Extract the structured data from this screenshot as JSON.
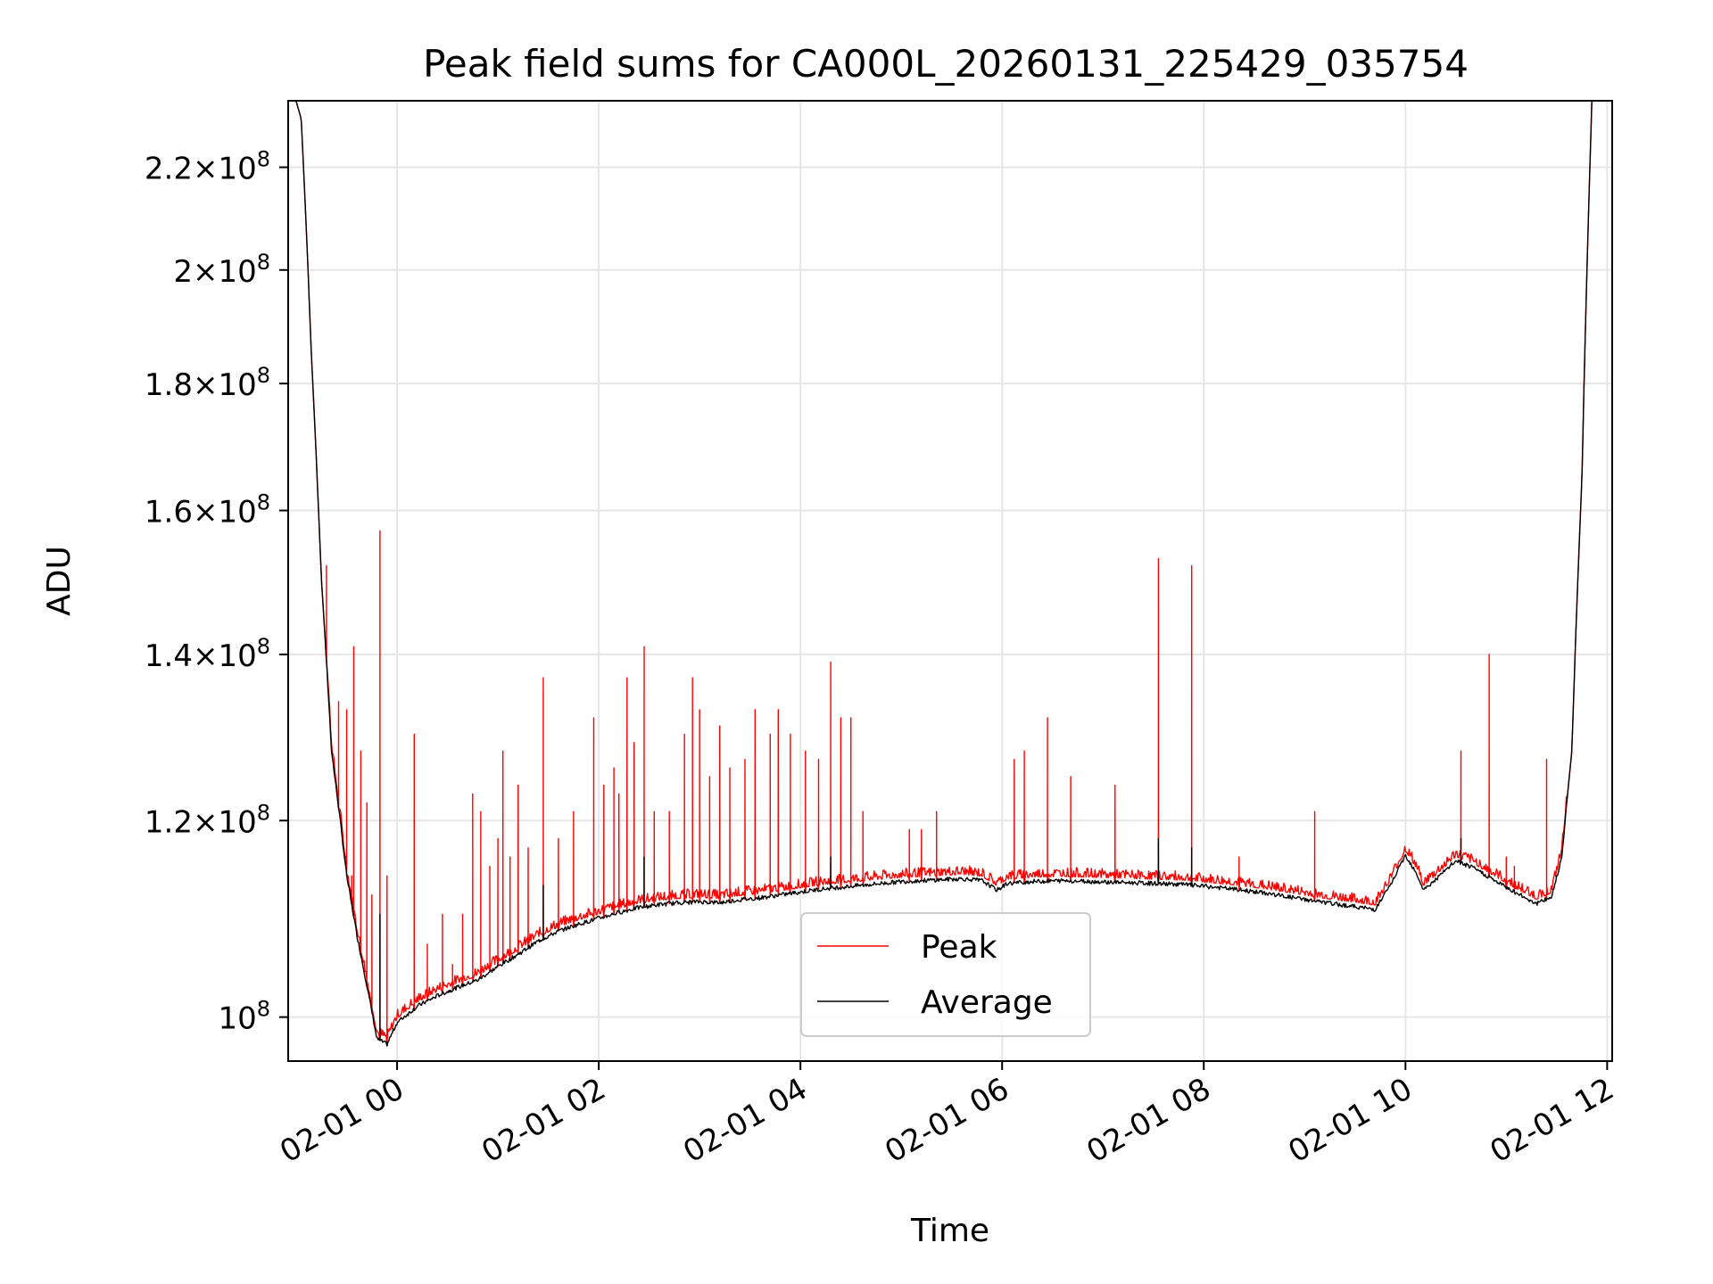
{
  "chart_data": {
    "type": "line",
    "title": "Peak field sums for CA000L_20260131_225429_035754",
    "xlabel": "Time",
    "ylabel": "ADU",
    "yscale": "log",
    "xlim_hours": [
      -1.08,
      12.05
    ],
    "ylim": [
      96000000,
      234000000
    ],
    "grid": true,
    "legend_position": "lower center",
    "x_ticks": [
      {
        "value": 0,
        "label": "02-01 00"
      },
      {
        "value": 2,
        "label": "02-01 02"
      },
      {
        "value": 4,
        "label": "02-01 04"
      },
      {
        "value": 6,
        "label": "02-01 06"
      },
      {
        "value": 8,
        "label": "02-01 08"
      },
      {
        "value": 10,
        "label": "02-01 10"
      },
      {
        "value": 12,
        "label": "02-01 12"
      }
    ],
    "y_ticks": [
      {
        "value": 100000000,
        "mant": "",
        "exp": "8"
      },
      {
        "value": 120000000,
        "mant": "1.2",
        "exp": "8"
      },
      {
        "value": 140000000,
        "mant": "1.4",
        "exp": "8"
      },
      {
        "value": 160000000,
        "mant": "1.6",
        "exp": "8"
      },
      {
        "value": 180000000,
        "mant": "1.8",
        "exp": "8"
      },
      {
        "value": 200000000,
        "mant": "2",
        "exp": "8"
      },
      {
        "value": 220000000,
        "mant": "2.2",
        "exp": "8"
      }
    ],
    "series": [
      {
        "name": "Peak",
        "color": "#ff0000"
      },
      {
        "name": "Average",
        "color": "#000000"
      }
    ],
    "average_baseline": [
      [
        -1.08,
        240000000
      ],
      [
        -0.95,
        230000000
      ],
      [
        -0.85,
        185000000
      ],
      [
        -0.75,
        150000000
      ],
      [
        -0.65,
        128000000
      ],
      [
        -0.5,
        114000000
      ],
      [
        -0.4,
        108000000
      ],
      [
        -0.3,
        103000000
      ],
      [
        -0.2,
        98000000
      ],
      [
        -0.1,
        97500000
      ],
      [
        0.0,
        99500000
      ],
      [
        0.2,
        101000000
      ],
      [
        0.4,
        102000000
      ],
      [
        0.6,
        102800000
      ],
      [
        0.8,
        103500000
      ],
      [
        1.0,
        104800000
      ],
      [
        1.2,
        106000000
      ],
      [
        1.4,
        107300000
      ],
      [
        1.6,
        108300000
      ],
      [
        1.8,
        109000000
      ],
      [
        2.0,
        109600000
      ],
      [
        2.2,
        110200000
      ],
      [
        2.4,
        110700000
      ],
      [
        2.6,
        111000000
      ],
      [
        2.8,
        111200000
      ],
      [
        3.0,
        111300000
      ],
      [
        3.2,
        111200000
      ],
      [
        3.4,
        111500000
      ],
      [
        3.6,
        111700000
      ],
      [
        3.8,
        112000000
      ],
      [
        4.0,
        112300000
      ],
      [
        4.2,
        112600000
      ],
      [
        4.4,
        112800000
      ],
      [
        4.6,
        113000000
      ],
      [
        4.8,
        113200000
      ],
      [
        5.0,
        113400000
      ],
      [
        5.2,
        113500000
      ],
      [
        5.4,
        113600000
      ],
      [
        5.6,
        113700000
      ],
      [
        5.8,
        113500000
      ],
      [
        5.95,
        112500000
      ],
      [
        6.05,
        113200000
      ],
      [
        6.3,
        113400000
      ],
      [
        6.6,
        113500000
      ],
      [
        6.9,
        113400000
      ],
      [
        7.2,
        113300000
      ],
      [
        7.5,
        113200000
      ],
      [
        7.8,
        113100000
      ],
      [
        8.0,
        112900000
      ],
      [
        8.3,
        112600000
      ],
      [
        8.6,
        112200000
      ],
      [
        8.9,
        111700000
      ],
      [
        9.2,
        111200000
      ],
      [
        9.5,
        110800000
      ],
      [
        9.7,
        110500000
      ],
      [
        9.85,
        113000000
      ],
      [
        10.0,
        116200000
      ],
      [
        10.1,
        114500000
      ],
      [
        10.18,
        112500000
      ],
      [
        10.3,
        113600000
      ],
      [
        10.5,
        115600000
      ],
      [
        10.7,
        114700000
      ],
      [
        10.9,
        113400000
      ],
      [
        11.1,
        112200000
      ],
      [
        11.3,
        111100000
      ],
      [
        11.45,
        111800000
      ],
      [
        11.55,
        116000000
      ],
      [
        11.65,
        128000000
      ],
      [
        11.75,
        165000000
      ],
      [
        11.85,
        235000000
      ],
      [
        12.05,
        240000000
      ]
    ],
    "peak_spikes": [
      [
        -0.7,
        152000000
      ],
      [
        -0.58,
        134000000
      ],
      [
        -0.5,
        133000000
      ],
      [
        -0.45,
        114000000
      ],
      [
        -0.43,
        141000000
      ],
      [
        -0.36,
        128000000
      ],
      [
        -0.3,
        122000000
      ],
      [
        -0.25,
        112000000
      ],
      [
        -0.17,
        157000000
      ],
      [
        -0.1,
        114000000
      ],
      [
        0.17,
        130000000
      ],
      [
        0.3,
        107000000
      ],
      [
        0.45,
        110000000
      ],
      [
        0.55,
        105000000
      ],
      [
        0.65,
        110000000
      ],
      [
        0.75,
        123000000
      ],
      [
        0.83,
        121000000
      ],
      [
        0.92,
        115000000
      ],
      [
        1.0,
        118000000
      ],
      [
        1.05,
        128000000
      ],
      [
        1.12,
        116000000
      ],
      [
        1.2,
        124000000
      ],
      [
        1.3,
        117000000
      ],
      [
        1.45,
        137000000
      ],
      [
        1.6,
        118000000
      ],
      [
        1.75,
        121000000
      ],
      [
        1.95,
        132000000
      ],
      [
        2.05,
        124000000
      ],
      [
        2.15,
        126000000
      ],
      [
        2.2,
        123000000
      ],
      [
        2.28,
        137000000
      ],
      [
        2.35,
        129000000
      ],
      [
        2.45,
        141000000
      ],
      [
        2.55,
        121000000
      ],
      [
        2.7,
        121000000
      ],
      [
        2.85,
        130000000
      ],
      [
        2.93,
        137000000
      ],
      [
        3.0,
        133000000
      ],
      [
        3.1,
        125000000
      ],
      [
        3.2,
        131000000
      ],
      [
        3.3,
        126000000
      ],
      [
        3.45,
        127000000
      ],
      [
        3.55,
        133000000
      ],
      [
        3.7,
        130000000
      ],
      [
        3.78,
        133000000
      ],
      [
        3.9,
        130000000
      ],
      [
        4.05,
        128000000
      ],
      [
        4.18,
        127000000
      ],
      [
        4.3,
        139000000
      ],
      [
        4.4,
        132000000
      ],
      [
        4.5,
        132000000
      ],
      [
        4.62,
        121000000
      ],
      [
        5.08,
        119000000
      ],
      [
        5.2,
        119000000
      ],
      [
        5.35,
        121000000
      ],
      [
        6.12,
        127000000
      ],
      [
        6.22,
        128000000
      ],
      [
        6.45,
        132000000
      ],
      [
        6.68,
        125000000
      ],
      [
        7.12,
        124000000
      ],
      [
        7.55,
        153000000
      ],
      [
        7.88,
        152000000
      ],
      [
        8.35,
        116000000
      ],
      [
        9.1,
        121000000
      ],
      [
        10.55,
        128000000
      ],
      [
        10.83,
        140000000
      ],
      [
        11.0,
        116000000
      ],
      [
        11.08,
        115000000
      ],
      [
        11.4,
        127000000
      ]
    ],
    "average_spikes": [
      [
        -0.17,
        110000000
      ],
      [
        1.45,
        113000000
      ],
      [
        2.45,
        116000000
      ],
      [
        4.3,
        116000000
      ],
      [
        7.55,
        118000000
      ],
      [
        7.88,
        117000000
      ],
      [
        10.55,
        118000000
      ]
    ]
  }
}
